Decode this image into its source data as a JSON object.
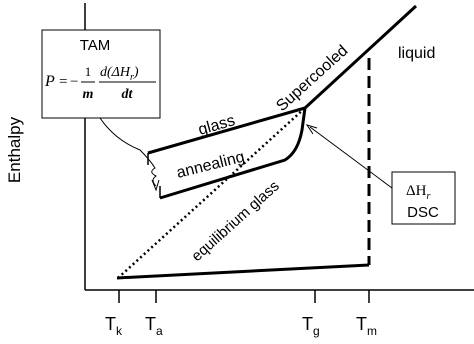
{
  "axis": {
    "y_label": "Enthalpy"
  },
  "ticks": [
    {
      "symbol": "T",
      "subscript": "k"
    },
    {
      "symbol": "T",
      "subscript": "a"
    },
    {
      "symbol": "T",
      "subscript": "g"
    },
    {
      "symbol": "T",
      "subscript": "m"
    }
  ],
  "curves": {
    "glass": "glass",
    "supercooled": "Supercooled",
    "liquid": "liquid",
    "annealing": "annealing",
    "equilibrium_glass": "equilibrium glass"
  },
  "tam_box": {
    "title": "TAM",
    "formula": {
      "lhs": "P",
      "equals": "=",
      "minus": "−",
      "num1": "1",
      "den1": "m",
      "num2": "d(ΔH",
      "num2_sub": "r",
      "num2_end": ")",
      "den2": "dt"
    }
  },
  "dsc_box": {
    "symbol": "ΔH",
    "subscript": "r",
    "label": "DSC"
  }
}
